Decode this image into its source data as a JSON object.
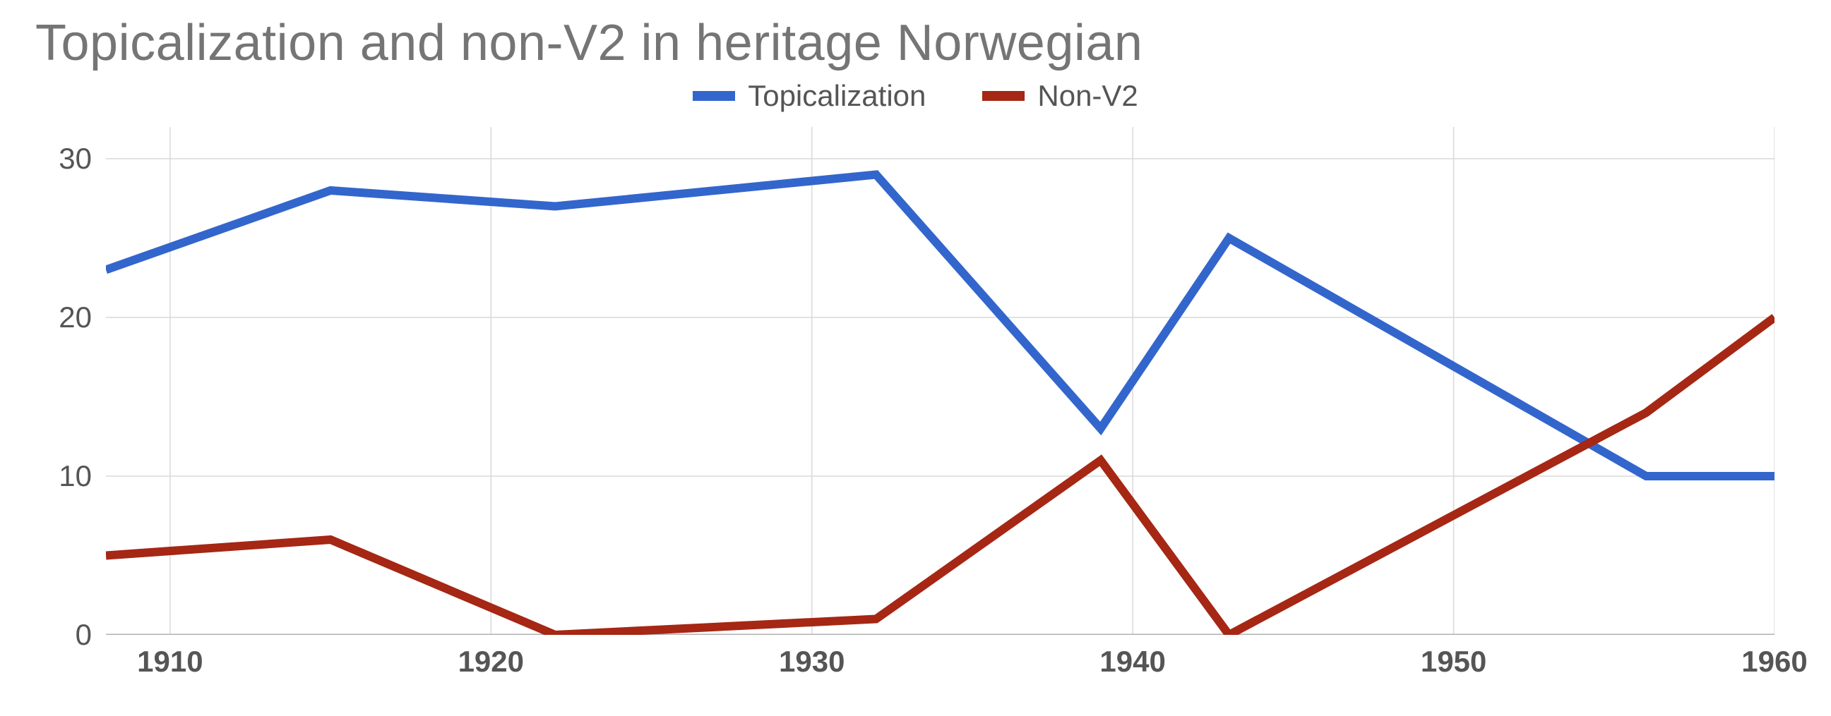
{
  "chart": {
    "type": "line",
    "title": "Topicalization and non-V2 in heritage Norwegian",
    "title_fontsize": 72,
    "title_color": "#757575",
    "background_color": "#ffffff",
    "grid_color": "#d9d9d9",
    "axis_line_color": "#b0b0b0",
    "axis_label_color": "#555555",
    "axis_label_fontsize": 42,
    "x_axis_label_fontweight": 700,
    "line_width": 12,
    "xlim": [
      1908,
      1960
    ],
    "ylim": [
      0,
      32
    ],
    "x_ticks": [
      1910,
      1920,
      1930,
      1940,
      1950,
      1960
    ],
    "x_tick_labels": [
      "1910",
      "1920",
      "1930",
      "1940",
      "1950",
      "1960"
    ],
    "y_ticks": [
      0,
      10,
      20,
      30
    ],
    "y_tick_labels": [
      "0",
      "10",
      "20",
      "30"
    ],
    "x_grid_at": [
      1910,
      1920,
      1930,
      1940,
      1950,
      1960
    ],
    "y_grid_at": [
      10,
      20,
      30
    ],
    "legend": {
      "items": [
        {
          "label": "Topicalization",
          "color": "#3366cc"
        },
        {
          "label": "Non-V2",
          "color": "#a52714"
        }
      ],
      "swatch_width": 60,
      "swatch_height": 14,
      "label_fontsize": 42,
      "label_color": "#555555"
    },
    "series": [
      {
        "name": "Topicalization",
        "color": "#3366cc",
        "x": [
          1908,
          1915,
          1922,
          1932,
          1939,
          1943,
          1956,
          1960
        ],
        "y": [
          23,
          28,
          27,
          29,
          13,
          25,
          10,
          10
        ]
      },
      {
        "name": "Non-V2",
        "color": "#a52714",
        "x": [
          1908,
          1915,
          1922,
          1932,
          1939,
          1943,
          1956,
          1960
        ],
        "y": [
          5,
          6,
          0,
          1,
          11,
          0,
          14,
          20
        ]
      }
    ]
  }
}
